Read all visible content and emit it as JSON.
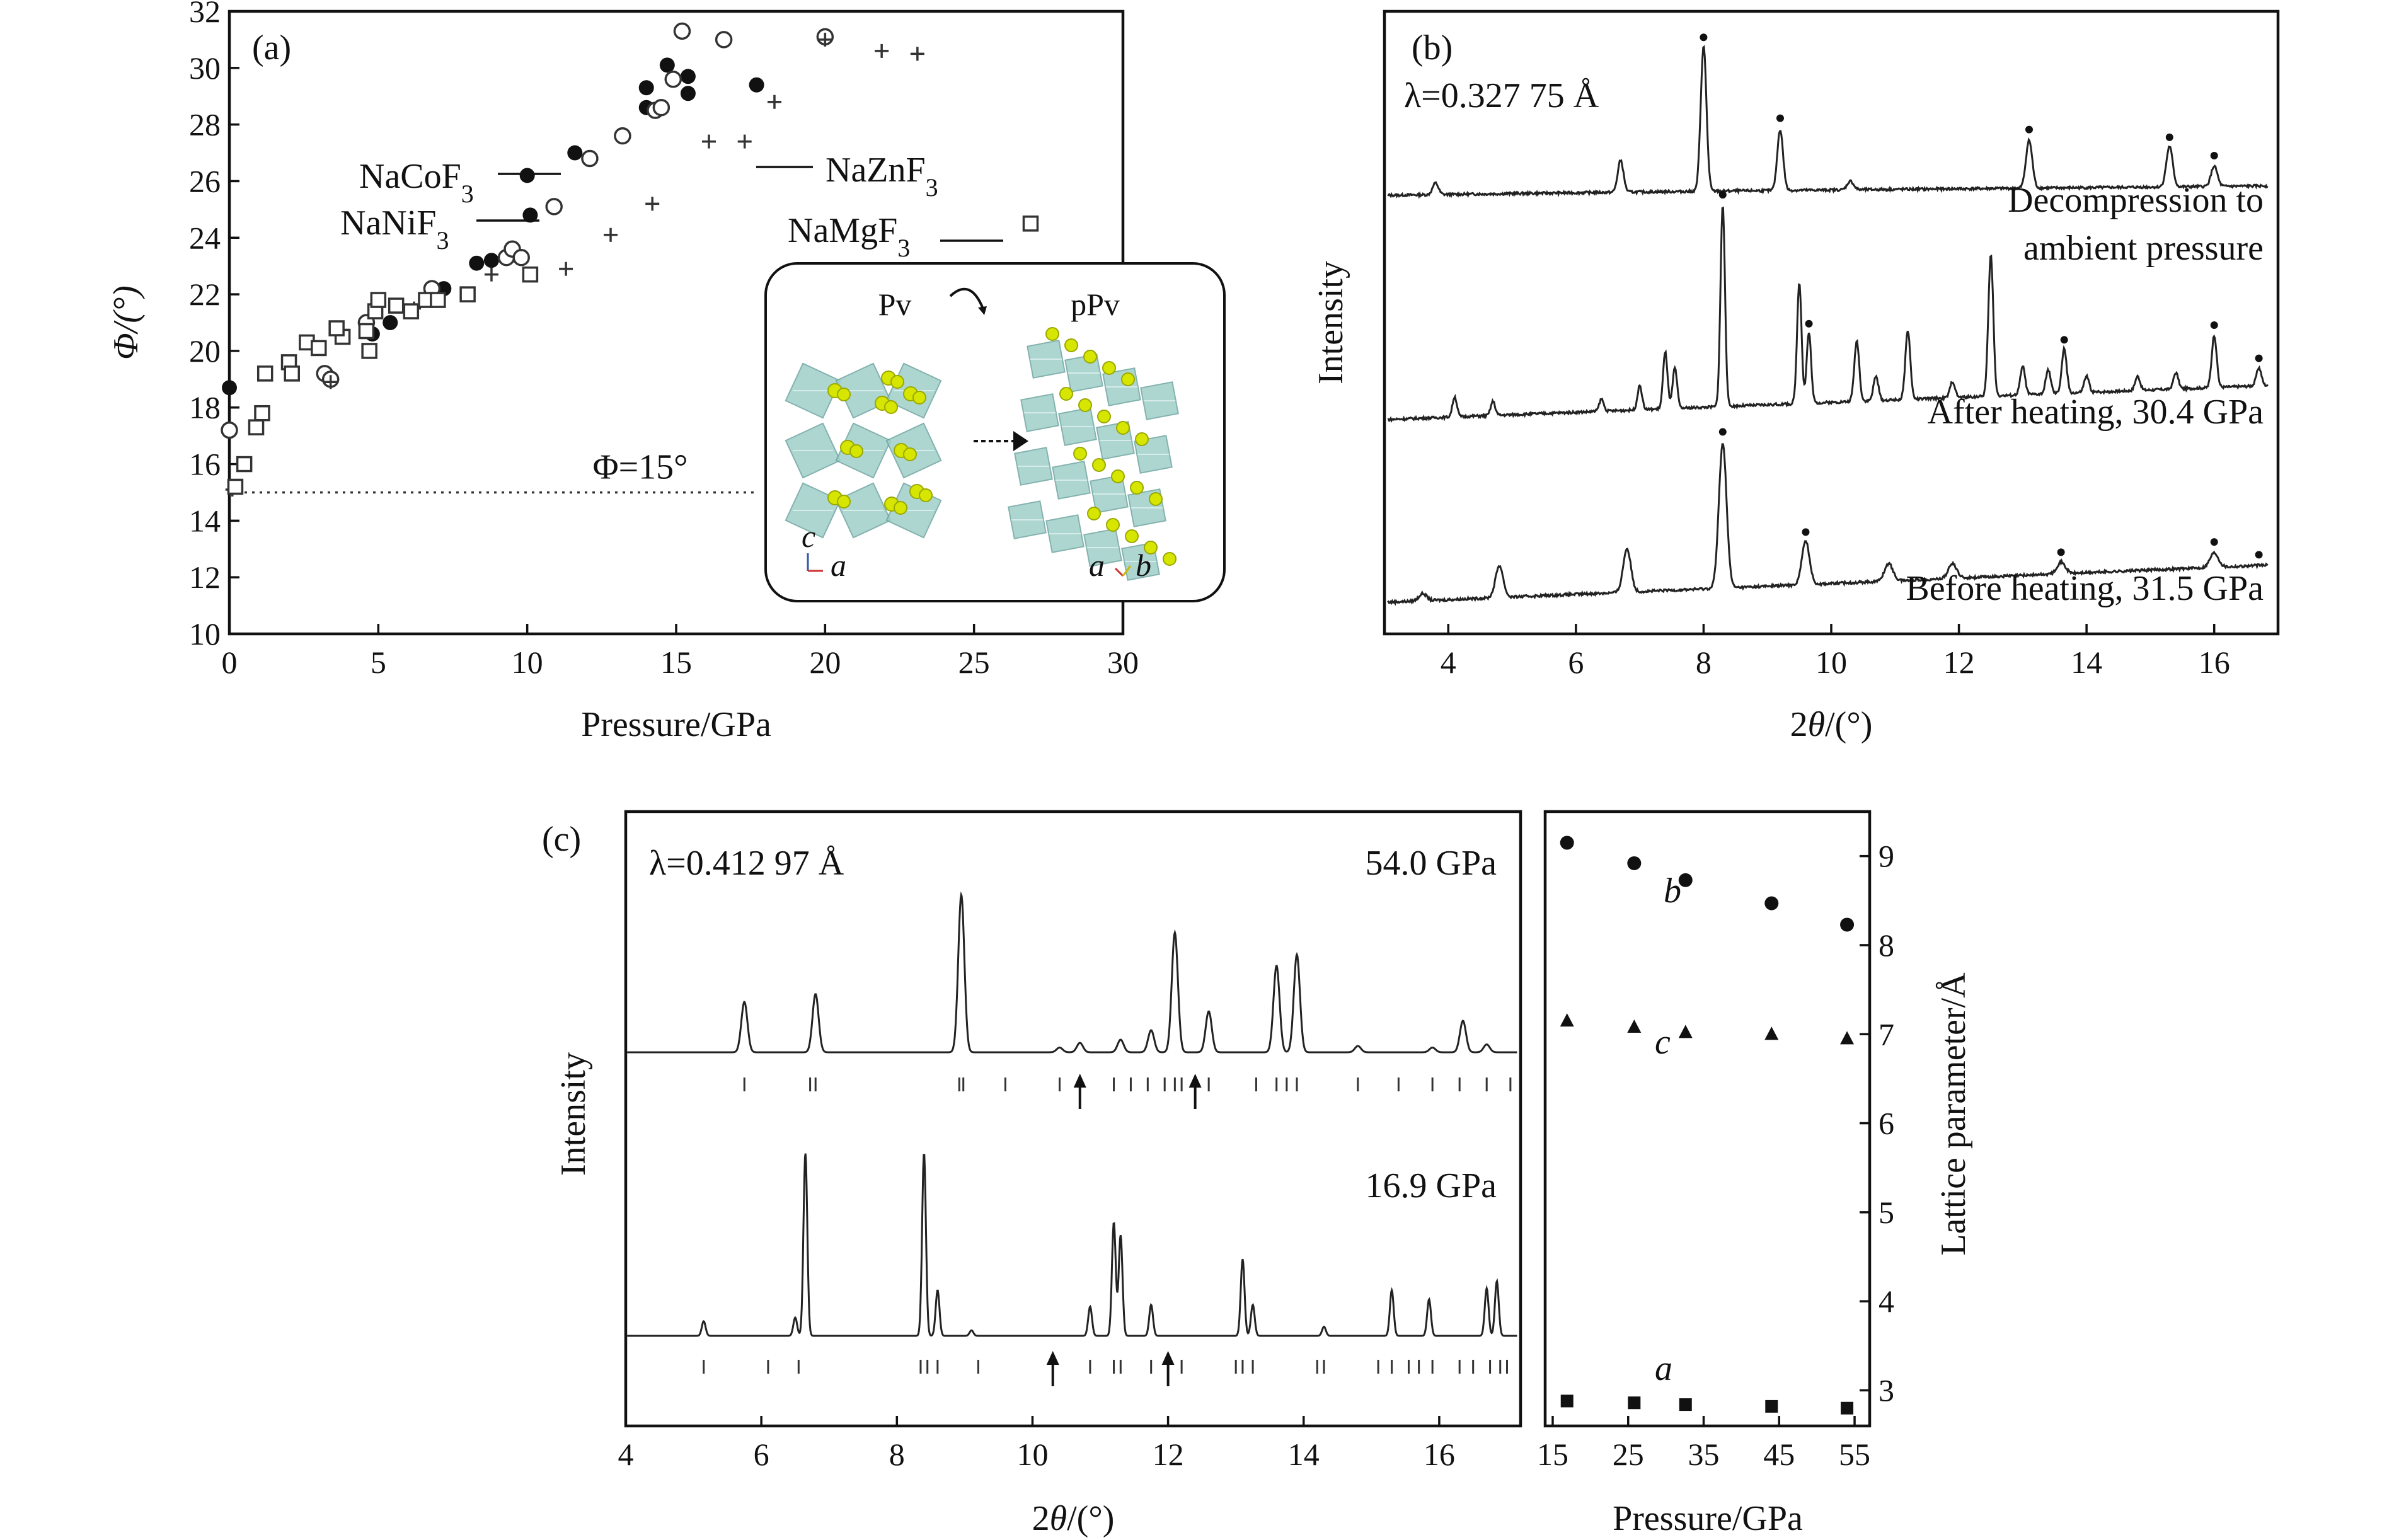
{
  "chart_data": [
    {
      "panel": "(a)",
      "type": "scatter",
      "xlabel": "Pressure/GPa",
      "ylabel": "Φ/(°)",
      "xlim": [
        0,
        30
      ],
      "ylim": [
        10,
        32
      ],
      "xticks": [
        "0",
        "5",
        "10",
        "15",
        "20",
        "25",
        "30"
      ],
      "yticks": [
        "10",
        "12",
        "14",
        "16",
        "18",
        "20",
        "22",
        "24",
        "26",
        "28",
        "30",
        "32"
      ],
      "reference_line": {
        "y": 15,
        "label": "Φ=15°"
      },
      "labels": {
        "naco": "NaCoF3",
        "nani": "NaNiF3",
        "nazn": "NaZnF3",
        "namg": "NaMgF3"
      },
      "series": [
        {
          "name": "NaCoF3",
          "marker": "filled-circle",
          "points": [
            [
              0,
              18.7
            ],
            [
              4.8,
              20.6
            ],
            [
              5.4,
              21.0
            ],
            [
              7.2,
              22.2
            ],
            [
              8.3,
              23.1
            ],
            [
              8.8,
              23.2
            ],
            [
              10.0,
              26.2
            ],
            [
              10.1,
              24.8
            ],
            [
              11.6,
              27.0
            ],
            [
              14.0,
              28.6
            ],
            [
              14.0,
              29.3
            ],
            [
              14.7,
              30.1
            ],
            [
              15.4,
              29.1
            ],
            [
              15.4,
              29.7
            ],
            [
              17.7,
              29.4
            ]
          ]
        },
        {
          "name": "NaNiF3",
          "marker": "open-circle",
          "points": [
            [
              0,
              17.2
            ],
            [
              3.2,
              19.2
            ],
            [
              3.4,
              19.0
            ],
            [
              4.6,
              21.0
            ],
            [
              6.8,
              22.2
            ],
            [
              9.3,
              23.3
            ],
            [
              9.5,
              23.6
            ],
            [
              9.8,
              23.3
            ],
            [
              10.9,
              25.1
            ],
            [
              12.1,
              26.8
            ],
            [
              13.2,
              27.6
            ],
            [
              14.3,
              28.5
            ],
            [
              14.5,
              28.6
            ],
            [
              14.9,
              29.6
            ],
            [
              15.2,
              31.3
            ],
            [
              16.6,
              31.0
            ],
            [
              20.0,
              31.1
            ]
          ]
        },
        {
          "name": "NaZnF3",
          "marker": "plus",
          "points": [
            [
              0.1,
              15.1
            ],
            [
              3.4,
              18.9
            ],
            [
              6.2,
              21.5
            ],
            [
              8.8,
              22.7
            ],
            [
              11.3,
              22.9
            ],
            [
              12.8,
              24.1
            ],
            [
              14.2,
              25.2
            ],
            [
              16.1,
              27.4
            ],
            [
              17.3,
              27.4
            ],
            [
              18.3,
              28.8
            ],
            [
              20.0,
              31.0
            ],
            [
              21.9,
              30.6
            ],
            [
              23.1,
              30.5
            ]
          ]
        },
        {
          "name": "NaMgF3",
          "marker": "open-square",
          "points": [
            [
              0.2,
              15.2
            ],
            [
              0.5,
              16.0
            ],
            [
              0.9,
              17.3
            ],
            [
              1.1,
              17.8
            ],
            [
              1.2,
              19.2
            ],
            [
              2.0,
              19.6
            ],
            [
              2.1,
              19.2
            ],
            [
              2.6,
              20.3
            ],
            [
              3.0,
              20.1
            ],
            [
              3.8,
              20.5
            ],
            [
              3.6,
              20.8
            ],
            [
              4.6,
              20.7
            ],
            [
              4.7,
              20.0
            ],
            [
              4.9,
              21.4
            ],
            [
              5.0,
              21.8
            ],
            [
              5.6,
              21.6
            ],
            [
              6.1,
              21.4
            ],
            [
              6.6,
              21.8
            ],
            [
              7.0,
              21.8
            ],
            [
              8.0,
              22.0
            ],
            [
              10.1,
              22.7
            ],
            [
              26.9,
              24.5
            ]
          ]
        }
      ],
      "inset": {
        "left_label": "Pv",
        "right_label": "pPv",
        "axes_left": [
          "c",
          "a"
        ],
        "axes_right": [
          "a",
          "b"
        ]
      }
    },
    {
      "panel": "(b)",
      "type": "line",
      "xlabel": "2θ/(°)",
      "ylabel": "Intensity",
      "xlim": [
        3,
        17
      ],
      "xticks": [
        "4",
        "6",
        "8",
        "10",
        "12",
        "14",
        "16"
      ],
      "wavelength": "λ=0.327 75 Å",
      "series": [
        {
          "name": "Decompression to ambient pressure",
          "label_line2": "",
          "peaks": [
            [
              3.8,
              0.08
            ],
            [
              6.7,
              0.22
            ],
            [
              8.0,
              1.0
            ],
            [
              9.2,
              0.42
            ],
            [
              10.3,
              0.06
            ],
            [
              13.1,
              0.33
            ],
            [
              15.3,
              0.28
            ],
            [
              16.0,
              0.14
            ]
          ],
          "markers": [
            8.0,
            9.2,
            13.1,
            15.3,
            16.0
          ]
        },
        {
          "name": "After heating, 30.4 GPa",
          "peaks": [
            [
              4.1,
              0.1
            ],
            [
              4.7,
              0.07
            ],
            [
              6.4,
              0.06
            ],
            [
              7.0,
              0.12
            ],
            [
              7.4,
              0.28
            ],
            [
              7.55,
              0.2
            ],
            [
              8.3,
              1.0
            ],
            [
              9.5,
              0.6
            ],
            [
              9.65,
              0.35
            ],
            [
              10.4,
              0.3
            ],
            [
              10.7,
              0.12
            ],
            [
              11.2,
              0.34
            ],
            [
              11.9,
              0.08
            ],
            [
              12.5,
              0.7
            ],
            [
              13.0,
              0.14
            ],
            [
              13.4,
              0.12
            ],
            [
              13.65,
              0.22
            ],
            [
              14.0,
              0.08
            ],
            [
              14.8,
              0.07
            ],
            [
              15.4,
              0.08
            ],
            [
              16.0,
              0.26
            ],
            [
              16.7,
              0.09
            ]
          ],
          "markers": [
            8.3,
            9.65,
            13.65,
            16.0,
            16.7
          ]
        },
        {
          "name": "Before heating, 31.5 GPa",
          "peaks": [
            [
              3.6,
              0.05
            ],
            [
              4.8,
              0.22
            ],
            [
              6.8,
              0.3
            ],
            [
              8.3,
              1.0
            ],
            [
              9.6,
              0.3
            ],
            [
              10.9,
              0.12
            ],
            [
              11.9,
              0.1
            ],
            [
              13.6,
              0.08
            ],
            [
              16.0,
              0.1
            ]
          ],
          "markers": [
            8.3,
            9.6,
            13.6,
            16.0,
            16.7
          ]
        }
      ]
    },
    {
      "panel": "(c)",
      "type": "line",
      "xlabel": "2θ/(°)",
      "ylabel": "Intensity",
      "xlim": [
        4,
        17.2
      ],
      "xticks": [
        "4",
        "6",
        "8",
        "10",
        "12",
        "14",
        "16"
      ],
      "wavelength": "λ=0.412 97 Å",
      "series": [
        {
          "name": "54.0 GPa",
          "peaks": [
            [
              5.75,
              0.32
            ],
            [
              6.8,
              0.37
            ],
            [
              8.95,
              1.0
            ],
            [
              10.4,
              0.03
            ],
            [
              10.7,
              0.06
            ],
            [
              11.3,
              0.08
            ],
            [
              11.75,
              0.14
            ],
            [
              12.1,
              0.76
            ],
            [
              12.6,
              0.26
            ],
            [
              13.6,
              0.55
            ],
            [
              13.9,
              0.62
            ],
            [
              14.8,
              0.04
            ],
            [
              15.9,
              0.03
            ],
            [
              16.35,
              0.2
            ],
            [
              16.7,
              0.05
            ]
          ],
          "ticks": [
            5.75,
            6.72,
            6.8,
            8.92,
            8.98,
            9.6,
            10.4,
            11.2,
            11.45,
            11.7,
            11.95,
            12.1,
            12.2,
            12.6,
            13.3,
            13.6,
            13.75,
            13.9,
            14.8,
            15.4,
            15.9,
            16.3,
            16.7,
            17.05
          ],
          "arrows": [
            10.7,
            12.4
          ]
        },
        {
          "name": "16.9 GPa",
          "peaks": [
            [
              5.15,
              0.08
            ],
            [
              6.5,
              0.1
            ],
            [
              6.65,
              1.0
            ],
            [
              8.4,
              1.0
            ],
            [
              8.6,
              0.25
            ],
            [
              9.1,
              0.03
            ],
            [
              10.85,
              0.16
            ],
            [
              11.2,
              0.62
            ],
            [
              11.3,
              0.55
            ],
            [
              11.75,
              0.17
            ],
            [
              13.1,
              0.42
            ],
            [
              13.25,
              0.17
            ],
            [
              14.3,
              0.05
            ],
            [
              15.3,
              0.25
            ],
            [
              15.85,
              0.2
            ],
            [
              16.7,
              0.26
            ],
            [
              16.85,
              0.3
            ]
          ],
          "ticks": [
            5.15,
            6.1,
            6.55,
            8.35,
            8.45,
            8.6,
            9.2,
            10.3,
            10.85,
            11.2,
            11.3,
            11.75,
            12.2,
            13.0,
            13.1,
            13.25,
            14.2,
            14.3,
            15.1,
            15.3,
            15.55,
            15.7,
            15.9,
            16.3,
            16.5,
            16.75,
            16.9,
            17.0
          ],
          "arrows": [
            10.3,
            12.0
          ]
        }
      ]
    },
    {
      "panel": "(c) right",
      "type": "scatter",
      "xlabel": "Pressure/GPa",
      "ylabel": "Lattice parameter/Å",
      "xlim": [
        14,
        57
      ],
      "ylim": [
        2.6,
        9.5
      ],
      "xticks": [
        "15",
        "25",
        "35",
        "45",
        "55"
      ],
      "yticks": [
        "3",
        "4",
        "5",
        "6",
        "7",
        "8",
        "9"
      ],
      "series": [
        {
          "name": "b",
          "marker": "filled-circle",
          "x": [
            16.9,
            25.8,
            32.6,
            44.0,
            54.0
          ],
          "y": [
            9.15,
            8.92,
            8.73,
            8.47,
            8.23
          ]
        },
        {
          "name": "c",
          "marker": "filled-triangle",
          "x": [
            16.9,
            25.8,
            32.6,
            44.0,
            54.0
          ],
          "y": [
            7.15,
            7.08,
            7.02,
            7.0,
            6.95
          ]
        },
        {
          "name": "a",
          "marker": "filled-square",
          "x": [
            16.9,
            25.8,
            32.6,
            44.0,
            54.0
          ],
          "y": [
            2.88,
            2.86,
            2.84,
            2.82,
            2.8
          ]
        }
      ]
    }
  ]
}
